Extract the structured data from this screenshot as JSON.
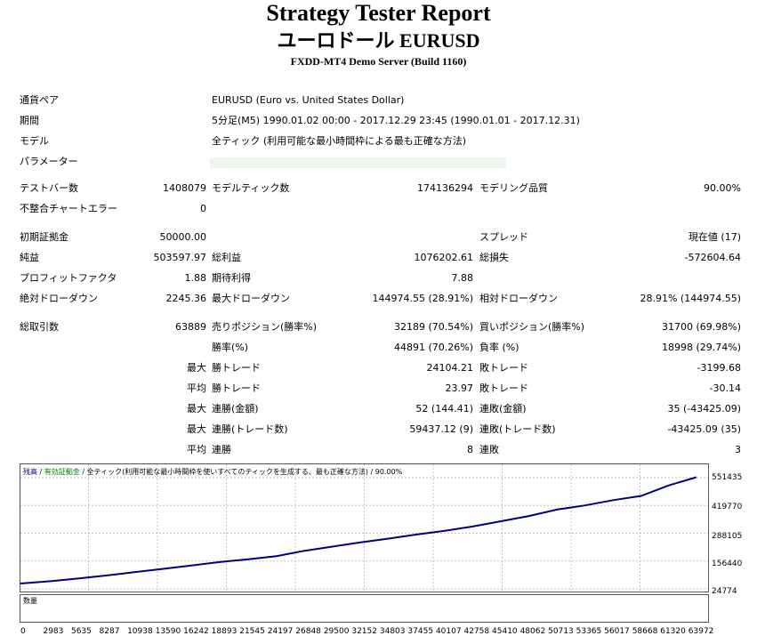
{
  "header": {
    "title": "Strategy Tester Report",
    "subtitle": "ユーロドール EURUSD",
    "server": "FXDD-MT4 Demo Server (Build 1160)"
  },
  "settings": {
    "pair_label": "通貨ペア",
    "pair_value": "EURUSD (Euro vs. United States Dollar)",
    "period_label": "期間",
    "period_value": "5分足(M5) 1990.01.02 00:00 - 2017.12.29 23:45 (1990.01.01 - 2017.12.31)",
    "model_label": "モデル",
    "model_value": "全ティック (利用可能な最小時間枠による最も正確な方法)",
    "params_label": "パラメーター"
  },
  "stats": {
    "bars_label": "テストバー数",
    "bars_value": "1408079",
    "ticks_label": "モデルティック数",
    "ticks_value": "174136294",
    "quality_label": "モデリング品質",
    "quality_value": "90.00%",
    "mismatch_label": "不整合チャートエラー",
    "mismatch_value": "0",
    "deposit_label": "初期証拠金",
    "deposit_value": "50000.00",
    "spread_label": "スプレッド",
    "spread_value": "現在値 (17)",
    "net_label": "純益",
    "net_value": "503597.97",
    "gross_profit_label": "総利益",
    "gross_profit_value": "1076202.61",
    "gross_loss_label": "総損失",
    "gross_loss_value": "-572604.64",
    "pf_label": "プロフィットファクタ",
    "pf_value": "1.88",
    "expected_label": "期待利得",
    "expected_value": "7.88",
    "abs_dd_label": "絶対ドローダウン",
    "abs_dd_value": "2245.36",
    "max_dd_label": "最大ドローダウン",
    "max_dd_value": "144974.55 (28.91%)",
    "rel_dd_label": "相対ドローダウン",
    "rel_dd_value": "28.91% (144974.55)",
    "trades_label": "総取引数",
    "trades_value": "63889",
    "short_label": "売りポジション(勝率%)",
    "short_value": "32189 (70.54%)",
    "long_label": "買いポジション(勝率%)",
    "long_value": "31700 (69.98%)",
    "win_rate_label": "勝率(%)",
    "win_rate_value": "44891 (70.26%)",
    "loss_rate_label": "負率 (%)",
    "loss_rate_value": "18998 (29.74%)",
    "max1": "最大",
    "largest_win_label": "勝トレード",
    "largest_win_value": "24104.21",
    "largest_loss_label": "敗トレード",
    "largest_loss_value": "-3199.68",
    "avg1": "平均",
    "avg_win_label": "勝トレード",
    "avg_win_value": "23.97",
    "avg_loss_label": "敗トレード",
    "avg_loss_value": "-30.14",
    "max2": "最大",
    "cons_win_money_label": "連勝(金額)",
    "cons_win_money_value": "52 (144.41)",
    "cons_loss_money_label": "連敗(金額)",
    "cons_loss_money_value": "35 (-43425.09)",
    "max3": "最大",
    "cons_win_trades_label": "連勝(トレード数)",
    "cons_win_trades_value": "59437.12 (9)",
    "cons_loss_trades_label": "連敗(トレード数)",
    "cons_loss_trades_value": "-43425.09 (35)",
    "avg2": "平均",
    "avg_cons_win_label": "連勝",
    "avg_cons_win_value": "8",
    "avg_cons_loss_label": "連敗",
    "avg_cons_loss_value": "3"
  },
  "chart_legend": {
    "balance": "残高",
    "sep1": " / ",
    "equity": "有効証拠金",
    "sep2": " / ",
    "model": "全ティック(利用可能な最小時間枠を使いすべてのティックを生成する、最も正確な方法)",
    "sep3": " / ",
    "quality": "90.00%"
  },
  "volume_label": "数量",
  "colors": {
    "balance_line": "#000080",
    "grid": "#c0c0c0",
    "equity": "#008000"
  },
  "chart_data": {
    "type": "line",
    "title": "",
    "xlabel": "",
    "ylabel": "",
    "y_ticks": [
      "551435",
      "419770",
      "288105",
      "156440",
      "24774"
    ],
    "x_ticks": [
      "0",
      "2983",
      "5635",
      "8287",
      "10938",
      "13590",
      "16242",
      "18893",
      "21545",
      "24197",
      "26848",
      "29500",
      "32152",
      "34803",
      "37455",
      "40107",
      "42758",
      "45410",
      "48062",
      "50713",
      "53365",
      "56017",
      "58668",
      "61320",
      "63972"
    ],
    "ylim": [
      24774,
      551435
    ],
    "xlim": [
      0,
      65000
    ],
    "series": [
      {
        "name": "残高",
        "x": [
          0,
          2983,
          5635,
          8287,
          10938,
          13590,
          16242,
          18893,
          21545,
          24197,
          26848,
          29500,
          32152,
          34803,
          37455,
          40107,
          42758,
          45410,
          48062,
          50713,
          53365,
          56017,
          58668,
          61320,
          63889
        ],
        "y": [
          50000,
          62000,
          75000,
          89000,
          105000,
          120000,
          136000,
          152000,
          165000,
          180000,
          205000,
          225000,
          245000,
          263000,
          282000,
          300000,
          320000,
          345000,
          370000,
          400000,
          420000,
          445000,
          465000,
          515000,
          553598
        ]
      }
    ]
  }
}
